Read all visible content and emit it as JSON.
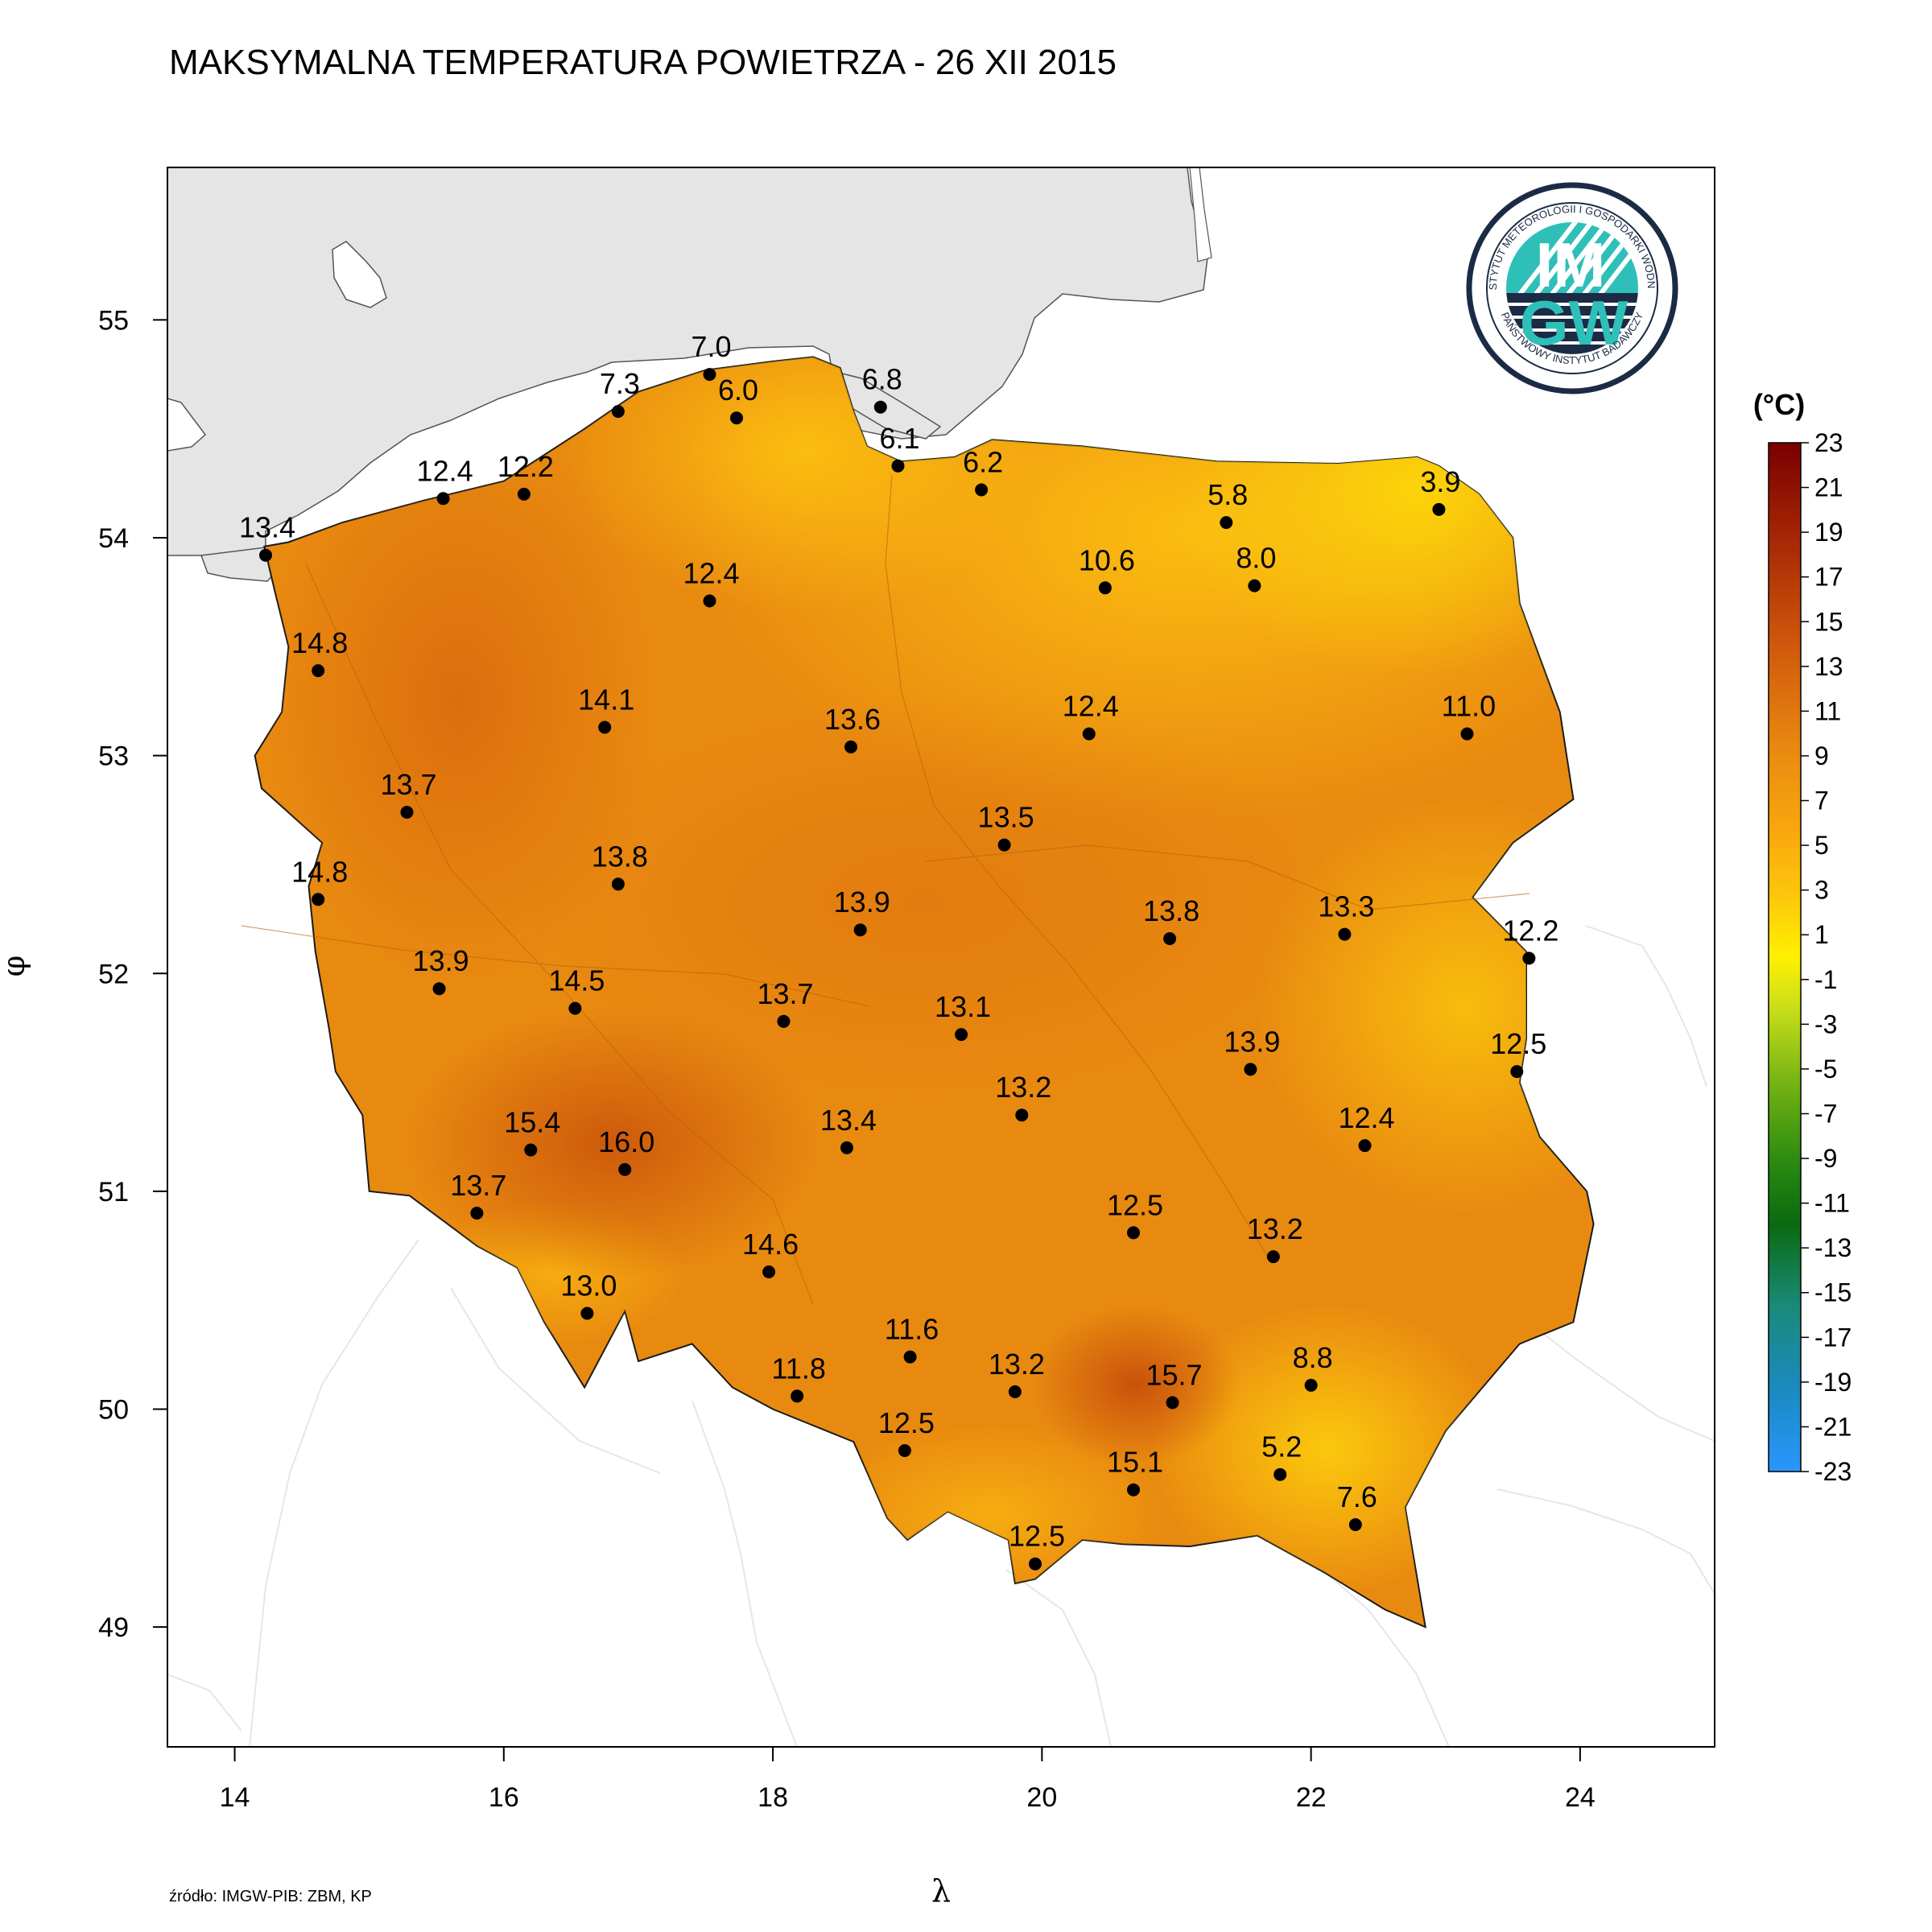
{
  "title": "MAKSYMALNA TEMPERATURA POWIETRZA - 26 XII 2015",
  "source_note": "źródło: IMGW-PIB: ZBM, KP",
  "axes": {
    "xlabel": "λ",
    "ylabel": "φ",
    "x_ticks": [
      "14",
      "16",
      "18",
      "20",
      "22",
      "24"
    ],
    "y_ticks": [
      "55",
      "54",
      "53",
      "52",
      "51",
      "50",
      "49"
    ],
    "x_range": [
      13.5,
      25.0
    ],
    "y_range": [
      48.45,
      55.7
    ]
  },
  "colorbar": {
    "unit": "(°C)",
    "labels": [
      "23",
      "21",
      "19",
      "17",
      "15",
      "13",
      "11",
      "9",
      "7",
      "5",
      "3",
      "1",
      "-1",
      "-3",
      "-5",
      "-7",
      "-9",
      "-11",
      "-13",
      "-15",
      "-17",
      "-19",
      "-21",
      "-23"
    ]
  },
  "logo": {
    "top_text": "INSTYTUT METEOROLOGII I GOSPODARKI WODNEJ",
    "bottom_text": "PAŃSTWOWY INSTYTUT BADAWCZY",
    "line1": "IM",
    "line2": "GW"
  },
  "colors": {
    "sea": "#e5e5e5",
    "land_main": "#e98a10",
    "north_east": "#f9b20e",
    "hot": "#d5610e",
    "mountains": "#f4a30f"
  },
  "stations": [
    {
      "lon": 14.23,
      "lat": 53.92,
      "value": "13.4"
    },
    {
      "lon": 15.55,
      "lat": 54.18,
      "value": "12.4"
    },
    {
      "lon": 16.15,
      "lat": 54.2,
      "value": "12.2"
    },
    {
      "lon": 16.85,
      "lat": 54.58,
      "value": "7.3"
    },
    {
      "lon": 17.53,
      "lat": 54.75,
      "value": "7.0"
    },
    {
      "lon": 17.73,
      "lat": 54.55,
      "value": "6.0"
    },
    {
      "lon": 18.8,
      "lat": 54.6,
      "value": "6.8"
    },
    {
      "lon": 18.93,
      "lat": 54.33,
      "value": "6.1"
    },
    {
      "lon": 19.55,
      "lat": 54.22,
      "value": "6.2"
    },
    {
      "lon": 21.37,
      "lat": 54.07,
      "value": "5.8"
    },
    {
      "lon": 21.58,
      "lat": 53.78,
      "value": "8.0"
    },
    {
      "lon": 22.95,
      "lat": 54.13,
      "value": "3.9"
    },
    {
      "lon": 20.47,
      "lat": 53.77,
      "value": "10.6"
    },
    {
      "lon": 17.53,
      "lat": 53.71,
      "value": "12.4"
    },
    {
      "lon": 14.62,
      "lat": 53.39,
      "value": "14.8"
    },
    {
      "lon": 16.75,
      "lat": 53.13,
      "value": "14.1"
    },
    {
      "lon": 18.58,
      "lat": 53.04,
      "value": "13.6"
    },
    {
      "lon": 20.35,
      "lat": 53.1,
      "value": "12.4"
    },
    {
      "lon": 23.16,
      "lat": 53.1,
      "value": "11.0"
    },
    {
      "lon": 15.28,
      "lat": 52.74,
      "value": "13.7"
    },
    {
      "lon": 19.72,
      "lat": 52.59,
      "value": "13.5"
    },
    {
      "lon": 14.62,
      "lat": 52.34,
      "value": "14.8"
    },
    {
      "lon": 16.85,
      "lat": 52.41,
      "value": "13.8"
    },
    {
      "lon": 18.65,
      "lat": 52.2,
      "value": "13.9"
    },
    {
      "lon": 20.95,
      "lat": 52.16,
      "value": "13.8"
    },
    {
      "lon": 22.25,
      "lat": 52.18,
      "value": "13.3"
    },
    {
      "lon": 23.62,
      "lat": 52.07,
      "value": "12.2"
    },
    {
      "lon": 15.52,
      "lat": 51.93,
      "value": "13.9"
    },
    {
      "lon": 16.53,
      "lat": 51.84,
      "value": "14.5"
    },
    {
      "lon": 18.08,
      "lat": 51.78,
      "value": "13.7"
    },
    {
      "lon": 19.4,
      "lat": 51.72,
      "value": "13.1"
    },
    {
      "lon": 21.55,
      "lat": 51.56,
      "value": "13.9"
    },
    {
      "lon": 23.53,
      "lat": 51.55,
      "value": "12.5"
    },
    {
      "lon": 19.85,
      "lat": 51.35,
      "value": "13.2"
    },
    {
      "lon": 16.2,
      "lat": 51.19,
      "value": "15.4"
    },
    {
      "lon": 16.9,
      "lat": 51.1,
      "value": "16.0"
    },
    {
      "lon": 18.55,
      "lat": 51.2,
      "value": "13.4"
    },
    {
      "lon": 22.4,
      "lat": 51.21,
      "value": "12.4"
    },
    {
      "lon": 15.8,
      "lat": 50.9,
      "value": "13.7"
    },
    {
      "lon": 20.68,
      "lat": 50.81,
      "value": "12.5"
    },
    {
      "lon": 21.72,
      "lat": 50.7,
      "value": "13.2"
    },
    {
      "lon": 17.97,
      "lat": 50.63,
      "value": "14.6"
    },
    {
      "lon": 16.62,
      "lat": 50.44,
      "value": "13.0"
    },
    {
      "lon": 19.02,
      "lat": 50.24,
      "value": "11.6"
    },
    {
      "lon": 18.18,
      "lat": 50.06,
      "value": "11.8"
    },
    {
      "lon": 19.8,
      "lat": 50.08,
      "value": "13.2"
    },
    {
      "lon": 22.0,
      "lat": 50.11,
      "value": "8.8"
    },
    {
      "lon": 20.97,
      "lat": 50.03,
      "value": "15.7"
    },
    {
      "lon": 18.98,
      "lat": 49.81,
      "value": "12.5"
    },
    {
      "lon": 21.77,
      "lat": 49.7,
      "value": "5.2"
    },
    {
      "lon": 20.68,
      "lat": 49.63,
      "value": "15.1"
    },
    {
      "lon": 22.33,
      "lat": 49.47,
      "value": "7.6"
    },
    {
      "lon": 19.95,
      "lat": 49.29,
      "value": "12.5"
    }
  ]
}
